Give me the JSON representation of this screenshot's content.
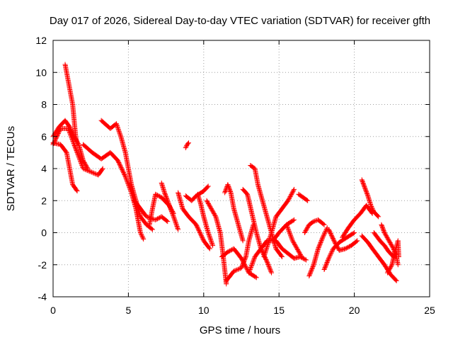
{
  "chart_data": {
    "type": "scatter",
    "title": "Day 017 of 2026, Sidereal Day-to-day VTEC variation (SDTVAR) for receiver gfth",
    "xlabel": "GPS time / hours",
    "ylabel": "SDTVAR / TECUs",
    "xlim": [
      0,
      25
    ],
    "ylim": [
      -4,
      12
    ],
    "xticks": [
      "0",
      "5",
      "10",
      "15",
      "20",
      "25"
    ],
    "yticks": [
      "-4",
      "-2",
      "0",
      "2",
      "4",
      "6",
      "8",
      "10",
      "12"
    ],
    "grid": true,
    "marker": "+",
    "color": "#ff0000",
    "tracks": [
      {
        "name": "track-1",
        "points": [
          [
            0.0,
            6.0
          ],
          [
            0.4,
            6.6
          ],
          [
            0.8,
            7.0
          ],
          [
            1.1,
            6.6
          ],
          [
            1.4,
            6.0
          ],
          [
            1.7,
            5.5
          ],
          [
            2.0,
            4.5
          ],
          [
            2.3,
            4.0
          ]
        ]
      },
      {
        "name": "track-2",
        "points": [
          [
            0.0,
            5.5
          ],
          [
            0.5,
            6.5
          ],
          [
            1.0,
            6.5
          ],
          [
            1.4,
            5.5
          ],
          [
            1.6,
            5.0
          ],
          [
            2.0,
            4.0
          ],
          [
            2.5,
            3.8
          ],
          [
            3.0,
            3.6
          ],
          [
            3.3,
            4.0
          ]
        ]
      },
      {
        "name": "track-3",
        "points": [
          [
            0.8,
            10.5
          ],
          [
            0.9,
            10.0
          ],
          [
            1.1,
            9.0
          ],
          [
            1.3,
            8.0
          ],
          [
            1.4,
            7.0
          ],
          [
            1.5,
            6.0
          ],
          [
            1.6,
            5.5
          ]
        ]
      },
      {
        "name": "track-4",
        "points": [
          [
            0.0,
            5.6
          ],
          [
            0.5,
            5.5
          ],
          [
            0.9,
            5.0
          ],
          [
            1.1,
            4.0
          ],
          [
            1.3,
            3.0
          ],
          [
            1.6,
            2.6
          ]
        ]
      },
      {
        "name": "track-5",
        "points": [
          [
            2.0,
            5.5
          ],
          [
            2.6,
            5.0
          ],
          [
            3.2,
            4.6
          ],
          [
            3.8,
            5.0
          ],
          [
            4.3,
            4.5
          ],
          [
            4.8,
            3.5
          ],
          [
            5.2,
            2.5
          ],
          [
            5.5,
            1.5
          ],
          [
            5.8,
            0.0
          ],
          [
            6.0,
            -0.4
          ]
        ]
      },
      {
        "name": "track-6",
        "points": [
          [
            3.2,
            7.0
          ],
          [
            3.8,
            6.5
          ],
          [
            4.2,
            6.8
          ],
          [
            4.5,
            6.0
          ],
          [
            4.8,
            5.0
          ],
          [
            5.0,
            4.0
          ],
          [
            5.2,
            3.0
          ],
          [
            5.5,
            2.0
          ],
          [
            5.8,
            1.0
          ],
          [
            6.2,
            0.5
          ],
          [
            6.6,
            0.2
          ]
        ]
      },
      {
        "name": "track-7",
        "points": [
          [
            5.4,
            2.0
          ],
          [
            5.8,
            1.5
          ],
          [
            6.2,
            1.0
          ],
          [
            6.8,
            0.8
          ],
          [
            7.2,
            1.0
          ],
          [
            7.6,
            0.7
          ]
        ]
      },
      {
        "name": "track-8",
        "points": [
          [
            6.4,
            0.5
          ],
          [
            6.6,
            1.5
          ],
          [
            6.8,
            2.4
          ],
          [
            7.2,
            2.2
          ],
          [
            7.7,
            1.7
          ],
          [
            8.0,
            1.2
          ]
        ]
      },
      {
        "name": "track-9",
        "points": [
          [
            7.2,
            3.1
          ],
          [
            7.4,
            2.5
          ],
          [
            7.6,
            2.0
          ],
          [
            8.0,
            1.0
          ],
          [
            8.3,
            0.2
          ]
        ]
      },
      {
        "name": "track-10",
        "points": [
          [
            8.3,
            2.5
          ],
          [
            8.6,
            1.5
          ],
          [
            9.0,
            1.0
          ],
          [
            9.5,
            0.5
          ],
          [
            10.0,
            -0.5
          ],
          [
            10.4,
            -1.0
          ]
        ]
      },
      {
        "name": "track-11",
        "points": [
          [
            8.8,
            5.3
          ],
          [
            8.9,
            5.5
          ],
          [
            9.0,
            5.6
          ]
        ]
      },
      {
        "name": "track-12",
        "points": [
          [
            8.8,
            2.3
          ],
          [
            9.2,
            2.0
          ],
          [
            9.5,
            2.3
          ],
          [
            10.0,
            2.6
          ],
          [
            10.3,
            2.9
          ]
        ]
      },
      {
        "name": "track-13",
        "points": [
          [
            9.6,
            2.4
          ],
          [
            9.8,
            1.8
          ],
          [
            10.0,
            1.0
          ],
          [
            10.3,
            0.0
          ],
          [
            10.6,
            -0.8
          ]
        ]
      },
      {
        "name": "track-14",
        "points": [
          [
            10.2,
            2.0
          ],
          [
            10.5,
            1.5
          ],
          [
            10.8,
            1.0
          ],
          [
            11.1,
            0.0
          ],
          [
            11.3,
            -1.5
          ],
          [
            11.5,
            -3.2
          ]
        ]
      },
      {
        "name": "track-15",
        "points": [
          [
            11.2,
            -1.5
          ],
          [
            11.6,
            -1.2
          ],
          [
            12.0,
            -1.0
          ],
          [
            12.5,
            -1.6
          ],
          [
            13.0,
            -2.5
          ],
          [
            13.5,
            -2.8
          ]
        ]
      },
      {
        "name": "track-16",
        "points": [
          [
            11.5,
            -3.0
          ],
          [
            12.0,
            -2.4
          ],
          [
            12.5,
            -2.2
          ],
          [
            12.8,
            -1.5
          ],
          [
            13.0,
            -0.5
          ],
          [
            13.3,
            0.5
          ]
        ]
      },
      {
        "name": "track-17",
        "points": [
          [
            11.4,
            2.5
          ],
          [
            11.6,
            3.0
          ],
          [
            11.8,
            2.5
          ],
          [
            12.0,
            1.5
          ],
          [
            12.3,
            0.5
          ],
          [
            12.6,
            -0.5
          ]
        ]
      },
      {
        "name": "track-18",
        "points": [
          [
            12.6,
            2.7
          ],
          [
            12.9,
            2.4
          ],
          [
            13.0,
            2.0
          ],
          [
            13.2,
            1.2
          ],
          [
            13.5,
            0.0
          ],
          [
            13.8,
            -1.0
          ],
          [
            14.2,
            -1.8
          ],
          [
            14.5,
            -2.5
          ]
        ]
      },
      {
        "name": "track-19",
        "points": [
          [
            13.1,
            4.2
          ],
          [
            13.4,
            4.0
          ],
          [
            13.6,
            3.0
          ],
          [
            13.9,
            2.0
          ],
          [
            14.2,
            1.0
          ],
          [
            14.5,
            0.0
          ],
          [
            14.8,
            -1.0
          ],
          [
            15.2,
            -1.5
          ]
        ]
      },
      {
        "name": "track-20",
        "points": [
          [
            13.0,
            -2.5
          ],
          [
            13.4,
            -1.5
          ],
          [
            13.8,
            -1.0
          ],
          [
            14.2,
            -0.5
          ],
          [
            14.6,
            -0.5
          ],
          [
            15.0,
            0.0
          ],
          [
            15.5,
            0.5
          ],
          [
            16.0,
            0.8
          ]
        ]
      },
      {
        "name": "track-21",
        "points": [
          [
            14.0,
            -1.5
          ],
          [
            14.5,
            0.0
          ],
          [
            14.8,
            1.0
          ],
          [
            15.2,
            1.5
          ],
          [
            15.6,
            2.0
          ],
          [
            16.0,
            2.7
          ]
        ]
      },
      {
        "name": "track-22",
        "points": [
          [
            14.8,
            -0.5
          ],
          [
            15.2,
            -1.0
          ],
          [
            15.6,
            -1.3
          ],
          [
            16.0,
            -1.6
          ],
          [
            16.4,
            -1.5
          ],
          [
            16.8,
            -1.7
          ]
        ]
      },
      {
        "name": "track-23",
        "points": [
          [
            15.5,
            0.5
          ],
          [
            15.9,
            -0.5
          ],
          [
            16.2,
            -1.0
          ],
          [
            16.5,
            -1.5
          ]
        ]
      },
      {
        "name": "track-24",
        "points": [
          [
            16.3,
            2.4
          ],
          [
            16.6,
            2.2
          ],
          [
            16.9,
            2.0
          ]
        ]
      },
      {
        "name": "track-25",
        "points": [
          [
            16.7,
            0.0
          ],
          [
            17.0,
            0.5
          ],
          [
            17.3,
            0.7
          ],
          [
            17.6,
            0.8
          ],
          [
            18.0,
            0.5
          ]
        ]
      },
      {
        "name": "track-26",
        "points": [
          [
            17.0,
            -2.7
          ],
          [
            17.3,
            -2.0
          ],
          [
            17.6,
            -1.0
          ],
          [
            17.9,
            -0.3
          ],
          [
            18.2,
            0.3
          ]
        ]
      },
      {
        "name": "track-27",
        "points": [
          [
            18.0,
            -2.3
          ],
          [
            18.3,
            -1.6
          ],
          [
            18.6,
            -1.0
          ],
          [
            19.0,
            -0.6
          ],
          [
            19.5,
            -0.3
          ],
          [
            20.0,
            0.0
          ]
        ]
      },
      {
        "name": "track-28",
        "points": [
          [
            18.3,
            0.2
          ],
          [
            18.7,
            -0.6
          ],
          [
            19.0,
            -1.1
          ],
          [
            19.4,
            -1.0
          ],
          [
            19.8,
            -0.8
          ],
          [
            20.2,
            -0.5
          ]
        ]
      },
      {
        "name": "track-29",
        "points": [
          [
            19.2,
            -0.3
          ],
          [
            19.6,
            0.3
          ],
          [
            20.0,
            0.8
          ],
          [
            20.4,
            1.2
          ],
          [
            20.8,
            1.7
          ],
          [
            21.2,
            1.2
          ]
        ]
      },
      {
        "name": "track-30",
        "points": [
          [
            20.5,
            3.3
          ],
          [
            20.7,
            2.8
          ],
          [
            20.9,
            2.3
          ],
          [
            21.1,
            1.7
          ],
          [
            21.3,
            1.3
          ],
          [
            21.6,
            1.0
          ]
        ]
      },
      {
        "name": "track-31",
        "points": [
          [
            20.5,
            -0.2
          ],
          [
            20.9,
            -0.6
          ],
          [
            21.2,
            -1.0
          ],
          [
            21.6,
            -1.5
          ],
          [
            22.0,
            -2.0
          ],
          [
            22.4,
            -2.6
          ],
          [
            22.8,
            -3.0
          ]
        ]
      },
      {
        "name": "track-32",
        "points": [
          [
            21.3,
            0.0
          ],
          [
            21.7,
            -0.5
          ],
          [
            22.0,
            -0.8
          ],
          [
            22.3,
            -1.2
          ],
          [
            22.6,
            -1.5
          ]
        ]
      },
      {
        "name": "track-33",
        "points": [
          [
            21.8,
            0.5
          ],
          [
            22.0,
            0.0
          ],
          [
            22.3,
            -0.5
          ],
          [
            22.6,
            -1.0
          ],
          [
            22.8,
            -1.5
          ],
          [
            22.9,
            -2.0
          ]
        ]
      },
      {
        "name": "track-34",
        "points": [
          [
            22.2,
            -2.5
          ],
          [
            22.5,
            -2.0
          ],
          [
            22.7,
            -1.2
          ],
          [
            22.9,
            -0.5
          ],
          [
            22.95,
            -1.5
          ]
        ]
      }
    ]
  }
}
